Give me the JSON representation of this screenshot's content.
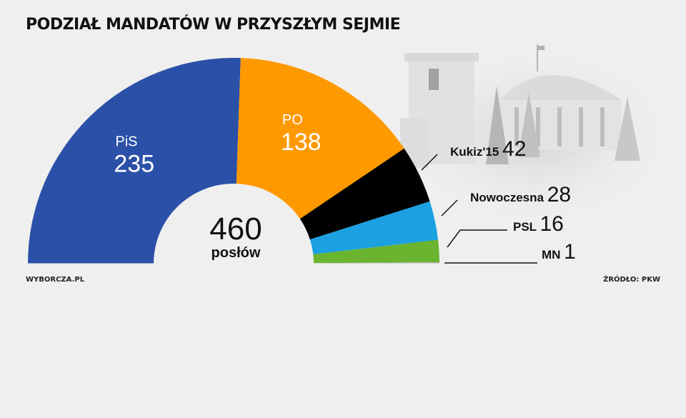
{
  "title": "PODZIAŁ MANDATÓW W PRZYSZŁYM SEJMIE",
  "footer": {
    "left": "WYBORCZA.PL",
    "right": "ŹRÓDŁO: PKW"
  },
  "chart_data": {
    "type": "pie",
    "variant": "semicircle-donut",
    "total": 460,
    "center_value": "460",
    "center_label": "posłów",
    "series": [
      {
        "name": "PiS",
        "value": 235,
        "color": "#2b50a8",
        "label_pos": "inside"
      },
      {
        "name": "PO",
        "value": 138,
        "color": "#ff9900",
        "label_pos": "inside"
      },
      {
        "name": "Kukiz'15",
        "value": 42,
        "color": "#000000",
        "label_pos": "outside"
      },
      {
        "name": "Nowoczesna",
        "value": 28,
        "color": "#1ba1e2",
        "label_pos": "outside"
      },
      {
        "name": "PSL",
        "value": 16,
        "color": "#6ab42f",
        "label_pos": "outside"
      },
      {
        "name": "MN",
        "value": 1,
        "color": "#b4b4b4",
        "label_pos": "outside"
      }
    ]
  }
}
